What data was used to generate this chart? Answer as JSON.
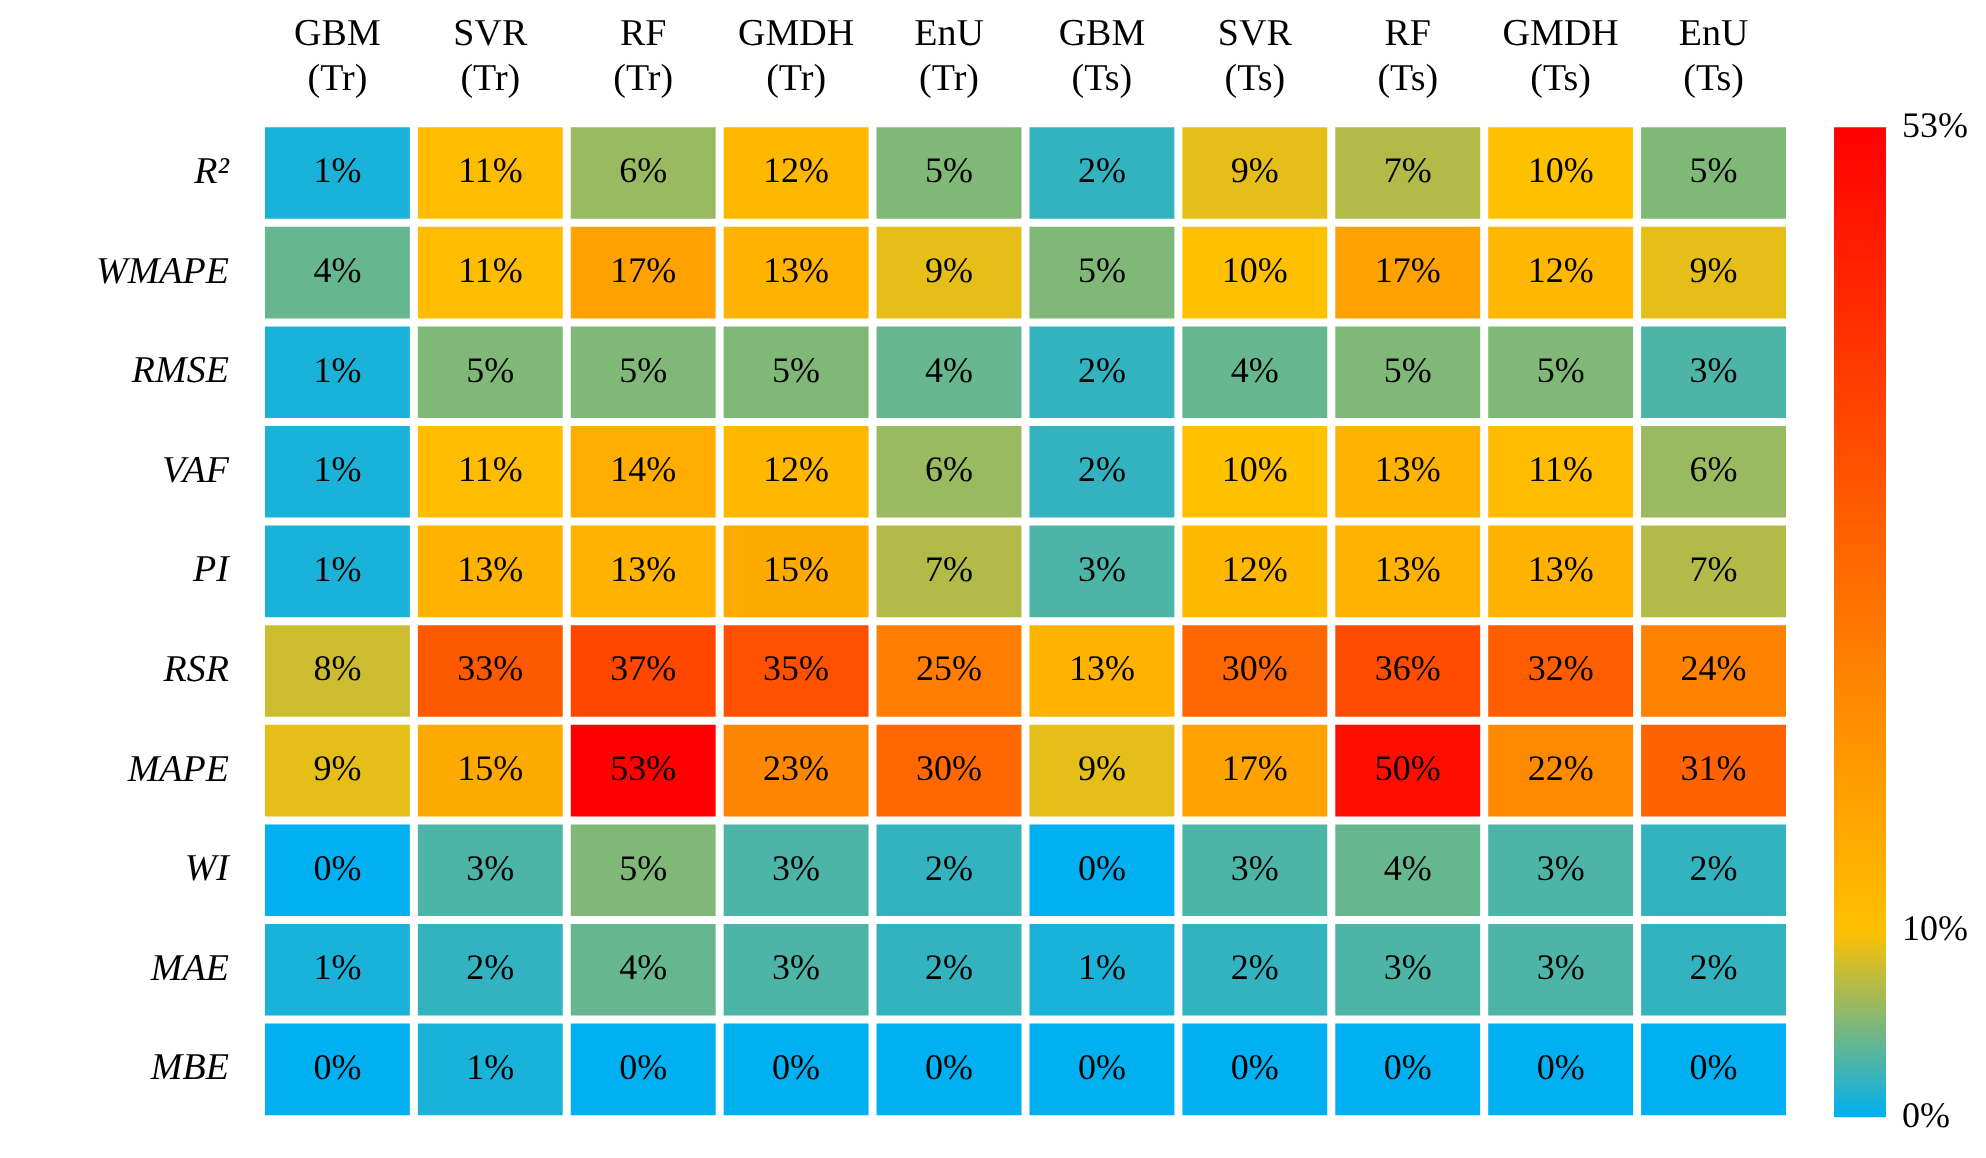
{
  "chart_data": {
    "type": "heatmap",
    "categories": [
      "GBM (Tr)",
      "SVR (Tr)",
      "RF (Tr)",
      "GMDH (Tr)",
      "EnU (Tr)",
      "GBM (Ts)",
      "SVR (Ts)",
      "RF (Ts)",
      "GMDH (Ts)",
      "EnU (Ts)"
    ],
    "y_categories": [
      "R²",
      "WMAPE",
      "RMSE",
      "VAF",
      "PI",
      "RSR",
      "MAPE",
      "WI",
      "MAE",
      "MBE"
    ],
    "cells": [
      [
        1,
        11,
        6,
        12,
        5,
        2,
        9,
        7,
        10,
        5
      ],
      [
        4,
        11,
        17,
        13,
        9,
        5,
        10,
        17,
        12,
        9
      ],
      [
        1,
        5,
        5,
        5,
        4,
        2,
        4,
        5,
        5,
        3
      ],
      [
        1,
        11,
        14,
        12,
        6,
        2,
        10,
        13,
        11,
        6
      ],
      [
        1,
        13,
        13,
        15,
        7,
        3,
        12,
        13,
        13,
        7
      ],
      [
        8,
        33,
        37,
        35,
        25,
        13,
        30,
        36,
        32,
        24
      ],
      [
        9,
        15,
        53,
        23,
        30,
        9,
        17,
        50,
        22,
        31
      ],
      [
        0,
        3,
        5,
        3,
        2,
        0,
        3,
        4,
        3,
        2
      ],
      [
        1,
        2,
        4,
        3,
        2,
        1,
        2,
        3,
        3,
        2
      ],
      [
        0,
        1,
        0,
        0,
        0,
        0,
        0,
        0,
        0,
        0
      ]
    ],
    "cell_labels": [
      [
        "1%",
        "11%",
        "6%",
        "12%",
        "5%",
        "2%",
        "9%",
        "7%",
        "10%",
        "5%"
      ],
      [
        "4%",
        "11%",
        "17%",
        "13%",
        "9%",
        "5%",
        "10%",
        "17%",
        "12%",
        "9%"
      ],
      [
        "1%",
        "5%",
        "5%",
        "5%",
        "4%",
        "2%",
        "4%",
        "5%",
        "5%",
        "3%"
      ],
      [
        "1%",
        "11%",
        "14%",
        "12%",
        "6%",
        "2%",
        "10%",
        "13%",
        "11%",
        "6%"
      ],
      [
        "1%",
        "13%",
        "13%",
        "15%",
        "7%",
        "3%",
        "12%",
        "13%",
        "13%",
        "7%"
      ],
      [
        "8%",
        "33%",
        "37%",
        "35%",
        "25%",
        "13%",
        "30%",
        "36%",
        "32%",
        "24%"
      ],
      [
        "9%",
        "15%",
        "53%",
        "23%",
        "30%",
        "9%",
        "17%",
        "50%",
        "22%",
        "31%"
      ],
      [
        "0%",
        "3%",
        "5%",
        "3%",
        "2%",
        "0%",
        "3%",
        "4%",
        "3%",
        "2%"
      ],
      [
        "1%",
        "2%",
        "4%",
        "3%",
        "2%",
        "1%",
        "2%",
        "3%",
        "3%",
        "2%"
      ],
      [
        "0%",
        "1%",
        "0%",
        "0%",
        "0%",
        "0%",
        "0%",
        "0%",
        "0%",
        "0%"
      ]
    ],
    "clim": [
      0,
      53
    ],
    "cticks": [
      {
        "value": 0,
        "label": "0%"
      },
      {
        "value": 10,
        "label": "10%"
      },
      {
        "value": 53,
        "label": "53%"
      }
    ],
    "colors": [
      "#00b0f0",
      "#ffc000",
      "#ff0000"
    ]
  }
}
